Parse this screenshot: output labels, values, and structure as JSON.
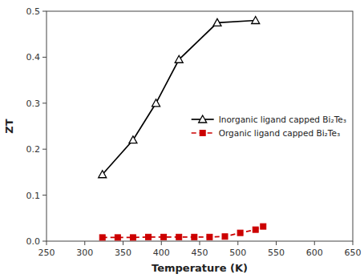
{
  "chart_data": {
    "type": "line",
    "xlabel": "Temperature (K)",
    "ylabel": "ZT",
    "xlim": [
      250,
      650
    ],
    "ylim": [
      0,
      0.5
    ],
    "xticks": [
      250,
      300,
      350,
      400,
      450,
      500,
      550,
      600,
      650
    ],
    "yticks": [
      {
        "value": 0.0,
        "label": "0.0"
      },
      0.1,
      0.2,
      0.3,
      0.4,
      0.5
    ],
    "grid": false,
    "legend": "right",
    "series": [
      {
        "name": "Inorganic ligand capped Bi₂Te₃",
        "color": "#000000",
        "marker": "triangle",
        "line_style": "solid",
        "x": [
          323,
          363,
          393,
          423,
          473,
          523
        ],
        "values": [
          0.145,
          0.22,
          0.3,
          0.395,
          0.475,
          0.48
        ]
      },
      {
        "name": "Organic ligand capped Bi₂Te₃",
        "color": "#cc0000",
        "marker": "square",
        "line_style": "dashed",
        "x": [
          323,
          343,
          363,
          383,
          403,
          423,
          443,
          463,
          483,
          503,
          523,
          533
        ],
        "values": [
          0.008,
          0.008,
          0.008,
          0.009,
          0.009,
          0.009,
          0.009,
          0.009,
          0.01,
          0.018,
          0.025,
          0.032
        ]
      }
    ]
  }
}
